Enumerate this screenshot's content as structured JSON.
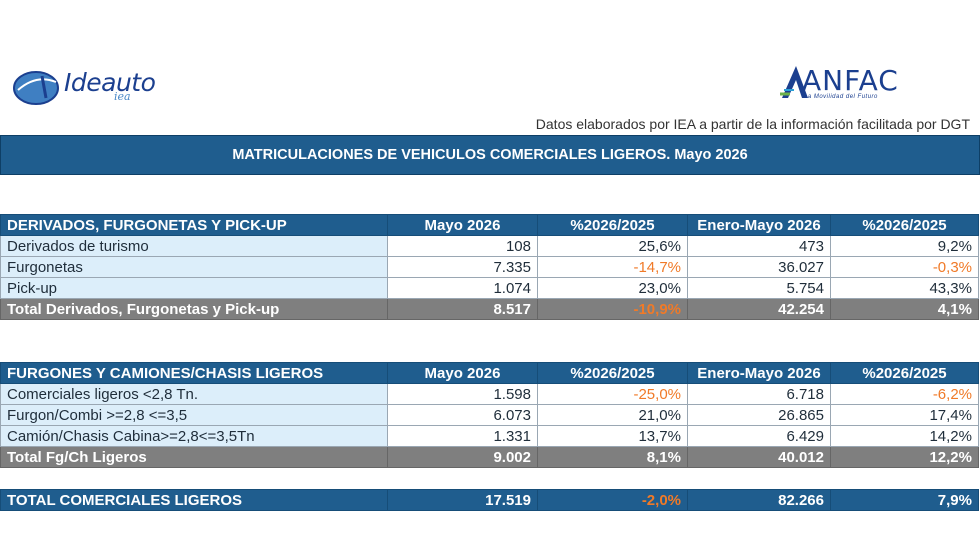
{
  "logos": {
    "ideauto_word": "Ideauto",
    "ideauto_sub": "iea",
    "anfac_word": "ANFAC",
    "anfac_tag": "La Movilidad del Futuro"
  },
  "source_note": "Datos elaborados por IEA a partir de la información facilitada por DGT",
  "title": "MATRICULACIONES DE VEHICULOS COMERCIALES LIGEROS. Mayo 2026",
  "section1": {
    "headers": [
      "DERIVADOS, FURGONETAS Y PICK-UP",
      "Mayo 2026",
      "%2026/2025",
      "Enero-Mayo 2026",
      "%2026/2025"
    ],
    "rows": [
      {
        "label": "Derivados de turismo",
        "mayo": "108",
        "pct1": "25,6%",
        "ene_may": "473",
        "pct2": "9,2%"
      },
      {
        "label": "Furgonetas",
        "mayo": "7.335",
        "pct1": "-14,7%",
        "ene_may": "36.027",
        "pct2": "-0,3%"
      },
      {
        "label": "Pick-up",
        "mayo": "1.074",
        "pct1": "23,0%",
        "ene_may": "5.754",
        "pct2": "43,3%"
      }
    ],
    "total": {
      "label": "Total Derivados, Furgonetas y Pick-up",
      "mayo": "8.517",
      "pct1": "-10,9%",
      "ene_may": "42.254",
      "pct2": "4,1%"
    }
  },
  "section2": {
    "headers": [
      "FURGONES Y CAMIONES/CHASIS LIGEROS",
      "Mayo 2026",
      "%2026/2025",
      "Enero-Mayo 2026",
      "%2026/2025"
    ],
    "rows": [
      {
        "label": "Comerciales ligeros <2,8 Tn.",
        "mayo": "1.598",
        "pct1": "-25,0%",
        "ene_may": "6.718",
        "pct2": "-6,2%"
      },
      {
        "label": "Furgon/Combi >=2,8 <=3,5",
        "mayo": "6.073",
        "pct1": "21,0%",
        "ene_may": "26.865",
        "pct2": "17,4%"
      },
      {
        "label": "Camión/Chasis Cabina>=2,8<=3,5Tn",
        "mayo": "1.331",
        "pct1": "13,7%",
        "ene_may": "6.429",
        "pct2": "14,2%"
      }
    ],
    "total": {
      "label": "Total Fg/Ch Ligeros",
      "mayo": "9.002",
      "pct1": "8,1%",
      "ene_may": "40.012",
      "pct2": "12,2%"
    }
  },
  "grand_total": {
    "label": "TOTAL COMERCIALES LIGEROS",
    "mayo": "17.519",
    "pct1": "-2,0%",
    "ene_may": "82.266",
    "pct2": "7,9%"
  },
  "colors": {
    "header_blue": "#1f5d8e",
    "label_bg": "#dceefa",
    "total_gray": "#7f7f7f",
    "negative_orange": "#f07a28"
  }
}
